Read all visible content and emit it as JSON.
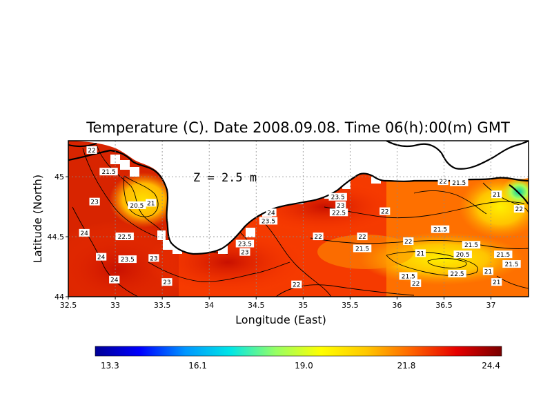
{
  "chart_data": {
    "type": "heatmap",
    "title": "Temperature (C). Date 2008.09.08. Time 06(h):00(m) GMT",
    "xlabel": "Longitude (East)",
    "ylabel": "Latitude (North)",
    "depth_label": "Z = 2.5 m",
    "xlim": [
      32.5,
      37.4
    ],
    "ylim": [
      44.0,
      45.3
    ],
    "x_ticks": [
      "32.5",
      "33",
      "33.5",
      "34",
      "34.5",
      "35",
      "35.5",
      "36",
      "36.5",
      "37"
    ],
    "x_tick_values": [
      32.5,
      33,
      33.5,
      34,
      34.5,
      35,
      35.5,
      36,
      36.5,
      37
    ],
    "y_ticks": [
      "44",
      "44.5",
      "45"
    ],
    "y_tick_values": [
      44,
      44.5,
      45
    ],
    "grid": true,
    "colorbar": {
      "min": 13.3,
      "max": 24.4,
      "tick_labels": [
        "13.3",
        "16.1",
        "19.0",
        "21.8",
        "24.4"
      ],
      "tick_values": [
        13.3,
        16.1,
        19.0,
        21.8,
        24.4
      ],
      "colors": [
        "#000096",
        "#0000ff",
        "#0096ff",
        "#00e6e6",
        "#96ff64",
        "#ffff00",
        "#ffc800",
        "#ff6400",
        "#e60000",
        "#780000"
      ]
    },
    "contour_labels": [
      {
        "text": "22",
        "lon": 32.75,
        "lat": 45.22
      },
      {
        "text": "21.5",
        "lon": 32.93,
        "lat": 45.04
      },
      {
        "text": "23",
        "lon": 32.78,
        "lat": 44.79
      },
      {
        "text": "20.5",
        "lon": 33.23,
        "lat": 44.76
      },
      {
        "text": "21",
        "lon": 33.38,
        "lat": 44.78
      },
      {
        "text": "24",
        "lon": 32.67,
        "lat": 44.53
      },
      {
        "text": "22.5",
        "lon": 33.1,
        "lat": 44.5
      },
      {
        "text": "24",
        "lon": 32.85,
        "lat": 44.33
      },
      {
        "text": "23.5",
        "lon": 33.13,
        "lat": 44.31
      },
      {
        "text": "23",
        "lon": 33.41,
        "lat": 44.32
      },
      {
        "text": "24",
        "lon": 32.99,
        "lat": 44.14
      },
      {
        "text": "23",
        "lon": 33.55,
        "lat": 44.12
      },
      {
        "text": "24",
        "lon": 34.66,
        "lat": 44.7
      },
      {
        "text": "23.5",
        "lon": 34.63,
        "lat": 44.63
      },
      {
        "text": "23.5",
        "lon": 34.38,
        "lat": 44.44
      },
      {
        "text": "23",
        "lon": 34.38,
        "lat": 44.37
      },
      {
        "text": "23.5",
        "lon": 35.37,
        "lat": 44.83
      },
      {
        "text": "23",
        "lon": 35.4,
        "lat": 44.76
      },
      {
        "text": "22.5",
        "lon": 35.38,
        "lat": 44.7
      },
      {
        "text": "22",
        "lon": 35.87,
        "lat": 44.71
      },
      {
        "text": "22",
        "lon": 35.16,
        "lat": 44.5
      },
      {
        "text": "22",
        "lon": 35.63,
        "lat": 44.5
      },
      {
        "text": "21.5",
        "lon": 35.63,
        "lat": 44.4
      },
      {
        "text": "22",
        "lon": 36.12,
        "lat": 44.46
      },
      {
        "text": "21.5",
        "lon": 36.46,
        "lat": 44.56
      },
      {
        "text": "22",
        "lon": 36.49,
        "lat": 44.96
      },
      {
        "text": "21.5",
        "lon": 36.66,
        "lat": 44.95
      },
      {
        "text": "21",
        "lon": 37.06,
        "lat": 44.85
      },
      {
        "text": "22",
        "lon": 37.3,
        "lat": 44.73
      },
      {
        "text": "21",
        "lon": 36.25,
        "lat": 44.36
      },
      {
        "text": "20.5",
        "lon": 36.7,
        "lat": 44.35
      },
      {
        "text": "21.5",
        "lon": 36.79,
        "lat": 44.43
      },
      {
        "text": "21.5",
        "lon": 37.13,
        "lat": 44.35
      },
      {
        "text": "21.5",
        "lon": 37.22,
        "lat": 44.27
      },
      {
        "text": "21",
        "lon": 36.97,
        "lat": 44.21
      },
      {
        "text": "21.5",
        "lon": 36.12,
        "lat": 44.17
      },
      {
        "text": "22",
        "lon": 36.2,
        "lat": 44.11
      },
      {
        "text": "22.5",
        "lon": 36.64,
        "lat": 44.19
      },
      {
        "text": "21",
        "lon": 37.06,
        "lat": 44.12
      },
      {
        "text": "22",
        "lon": 34.93,
        "lat": 44.1
      }
    ]
  }
}
